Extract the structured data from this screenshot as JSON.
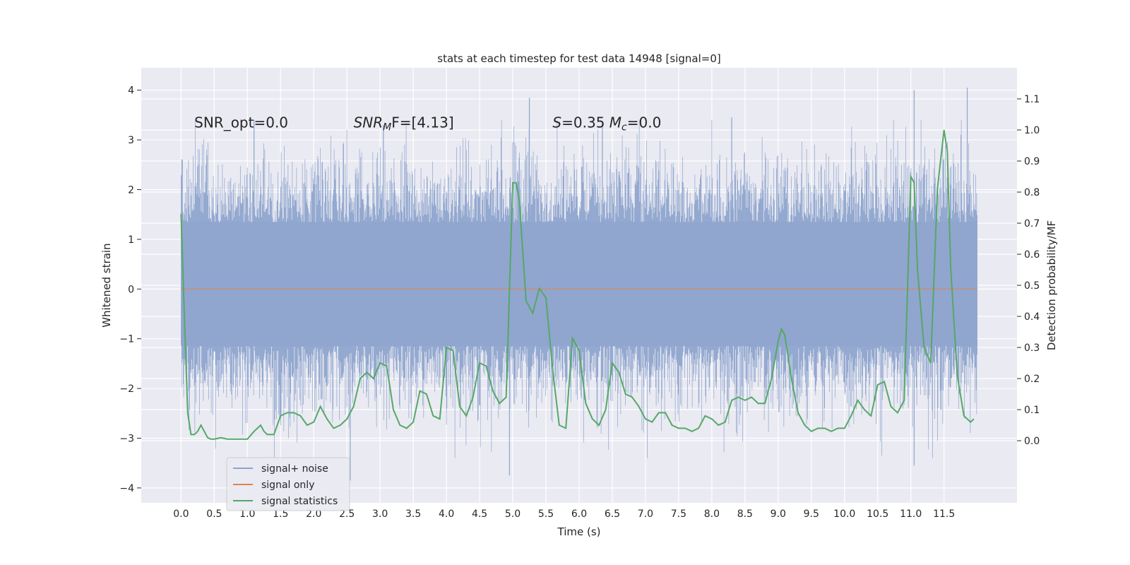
{
  "chart_data": {
    "type": "line",
    "title": "stats at each timestep for test data 14948 [signal=0]",
    "xlabel": "Time (s)",
    "ylabel_left": "Whitened strain",
    "ylabel_right": "Detection probability/MF",
    "xlim": [
      -0.6,
      12.6
    ],
    "ylim_left": [
      -4.3,
      4.45
    ],
    "ylim_right": [
      -0.2,
      1.2
    ],
    "x_ticks": [
      "0.0",
      "0.5",
      "1.0",
      "1.5",
      "2.0",
      "2.5",
      "3.0",
      "3.5",
      "4.0",
      "4.5",
      "5.0",
      "5.5",
      "6.0",
      "6.5",
      "7.0",
      "7.5",
      "8.0",
      "8.5",
      "9.0",
      "9.5",
      "10.0",
      "10.5",
      "11.0",
      "11.5"
    ],
    "y_ticks_left": [
      "4",
      "3",
      "2",
      "1",
      "0",
      "−1",
      "−2",
      "−3",
      "−4"
    ],
    "y_ticks_right": [
      "1.1",
      "1.0",
      "0.9",
      "0.8",
      "0.7",
      "0.6",
      "0.5",
      "0.4",
      "0.3",
      "0.2",
      "0.1",
      "0.0"
    ],
    "grid": true,
    "legend_placement": "lower-left",
    "annotations": [
      {
        "id": "snr-opt",
        "text": "SNR_opt=0.0",
        "x": 0.2,
        "y": 3.25
      },
      {
        "id": "snr-mf",
        "text": "SNR_MF=[4.13]",
        "main": "SNR",
        "sub": "M",
        "rest": "F=[4.13]",
        "x": 2.6,
        "y": 3.25
      },
      {
        "id": "s-mc",
        "text": "S=0.35   M_c=0.0",
        "x": 5.6,
        "y": 3.25
      }
    ],
    "series": [
      {
        "name": "signal+ noise",
        "axis": "left",
        "color": "#8fa5cd",
        "x_range": [
          0.0,
          12.0
        ],
        "band": [
          -1.15,
          1.35
        ],
        "envelope_peaks": [
          {
            "x": 0.02,
            "y": 2.6
          },
          {
            "x": 1.1,
            "y": 3.4
          },
          {
            "x": 2.55,
            "y": -3.85
          },
          {
            "x": 3.05,
            "y": 3.3
          },
          {
            "x": 4.95,
            "y": -3.75
          },
          {
            "x": 5.25,
            "y": 3.85
          },
          {
            "x": 6.35,
            "y": 3.35
          },
          {
            "x": 8.3,
            "y": 3.45
          },
          {
            "x": 11.05,
            "y": 4.0
          },
          {
            "x": 11.05,
            "y": -3.55
          },
          {
            "x": 11.85,
            "y": 4.05
          }
        ]
      },
      {
        "name": "signal only",
        "axis": "left",
        "color": "#dd8452",
        "x": [
          0.0,
          12.0
        ],
        "y": [
          0.0,
          0.0
        ]
      },
      {
        "name": "signal statistics",
        "axis": "right",
        "color": "#55a868",
        "x": [
          0.0,
          0.05,
          0.1,
          0.15,
          0.2,
          0.25,
          0.3,
          0.35,
          0.4,
          0.45,
          0.5,
          0.6,
          0.7,
          0.8,
          0.9,
          1.0,
          1.1,
          1.2,
          1.25,
          1.3,
          1.4,
          1.5,
          1.6,
          1.7,
          1.8,
          1.9,
          2.0,
          2.1,
          2.2,
          2.3,
          2.4,
          2.5,
          2.6,
          2.7,
          2.8,
          2.9,
          3.0,
          3.1,
          3.2,
          3.3,
          3.4,
          3.5,
          3.6,
          3.7,
          3.8,
          3.9,
          4.0,
          4.1,
          4.2,
          4.3,
          4.4,
          4.5,
          4.6,
          4.7,
          4.8,
          4.9,
          5.0,
          5.05,
          5.1,
          5.2,
          5.3,
          5.4,
          5.5,
          5.6,
          5.7,
          5.8,
          5.9,
          6.0,
          6.1,
          6.2,
          6.3,
          6.4,
          6.5,
          6.6,
          6.7,
          6.8,
          6.9,
          7.0,
          7.1,
          7.2,
          7.3,
          7.4,
          7.5,
          7.6,
          7.7,
          7.8,
          7.9,
          8.0,
          8.1,
          8.2,
          8.3,
          8.4,
          8.5,
          8.6,
          8.7,
          8.8,
          8.9,
          9.0,
          9.05,
          9.1,
          9.2,
          9.3,
          9.4,
          9.5,
          9.6,
          9.7,
          9.8,
          9.9,
          10.0,
          10.1,
          10.2,
          10.3,
          10.4,
          10.5,
          10.6,
          10.7,
          10.8,
          10.9,
          11.0,
          11.05,
          11.1,
          11.2,
          11.3,
          11.4,
          11.5,
          11.55,
          11.6,
          11.7,
          11.8,
          11.9,
          11.95
        ],
        "y": [
          0.73,
          0.4,
          0.09,
          0.02,
          0.02,
          0.03,
          0.05,
          0.03,
          0.01,
          0.005,
          0.005,
          0.01,
          0.005,
          0.005,
          0.005,
          0.005,
          0.03,
          0.05,
          0.03,
          0.02,
          0.02,
          0.08,
          0.09,
          0.09,
          0.08,
          0.05,
          0.06,
          0.11,
          0.07,
          0.04,
          0.05,
          0.07,
          0.11,
          0.2,
          0.22,
          0.2,
          0.25,
          0.24,
          0.1,
          0.05,
          0.04,
          0.06,
          0.16,
          0.15,
          0.08,
          0.07,
          0.3,
          0.29,
          0.11,
          0.08,
          0.14,
          0.25,
          0.24,
          0.16,
          0.12,
          0.14,
          0.83,
          0.83,
          0.77,
          0.45,
          0.41,
          0.49,
          0.46,
          0.23,
          0.05,
          0.04,
          0.33,
          0.29,
          0.12,
          0.07,
          0.05,
          0.1,
          0.25,
          0.22,
          0.15,
          0.14,
          0.11,
          0.07,
          0.06,
          0.09,
          0.09,
          0.05,
          0.04,
          0.04,
          0.03,
          0.04,
          0.08,
          0.07,
          0.05,
          0.06,
          0.13,
          0.14,
          0.13,
          0.14,
          0.12,
          0.12,
          0.2,
          0.32,
          0.36,
          0.34,
          0.2,
          0.09,
          0.05,
          0.03,
          0.04,
          0.04,
          0.03,
          0.04,
          0.04,
          0.08,
          0.13,
          0.1,
          0.08,
          0.18,
          0.19,
          0.11,
          0.09,
          0.13,
          0.85,
          0.83,
          0.55,
          0.3,
          0.25,
          0.81,
          1.0,
          0.93,
          0.56,
          0.21,
          0.08,
          0.06,
          0.07
        ]
      }
    ]
  }
}
